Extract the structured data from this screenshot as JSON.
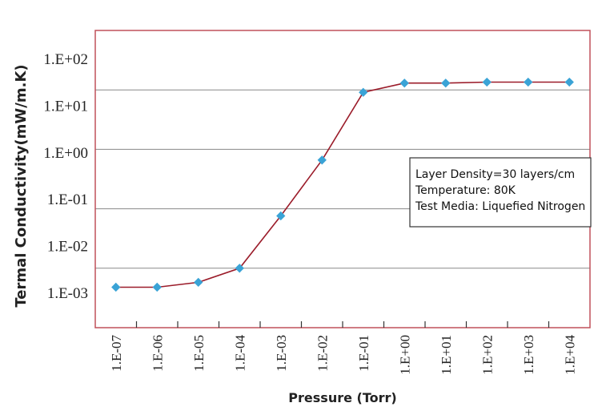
{
  "chart_data": {
    "type": "line",
    "title": "",
    "xlabel": "Pressure (Torr)",
    "ylabel": "Termal Conductivity(mW/m.K)",
    "y_scale": "log",
    "ylim": [
      0.001,
      100
    ],
    "grid": "horizontal",
    "categories": [
      "1.E-07",
      "1.E-06",
      "1.E-05",
      "1.E-04",
      "1.E-03",
      "1.E-02",
      "1.E-01",
      "1.E+00",
      "1.E+01",
      "1.E+02",
      "1.E+03",
      "1.E+04"
    ],
    "y_tick_labels": [
      "1.E+02",
      "1.E+01",
      "1.E+00",
      "1.E-01",
      "1.E-02",
      "1.E-03"
    ],
    "series": [
      {
        "values": [
          0.0048,
          0.0048,
          0.0058,
          0.01,
          0.076,
          0.66,
          9.1,
          13,
          13,
          13.5,
          13.5,
          13.5
        ]
      }
    ],
    "colors": {
      "line": "#9b1c2a",
      "marker": "#3aa3d6",
      "frame": "#c0505a",
      "grid": "#888888"
    },
    "annotation": [
      "Layer Density=30 layers/cm",
      "Temperature: 80K",
      "Test Media: Liquefied Nitrogen"
    ]
  }
}
